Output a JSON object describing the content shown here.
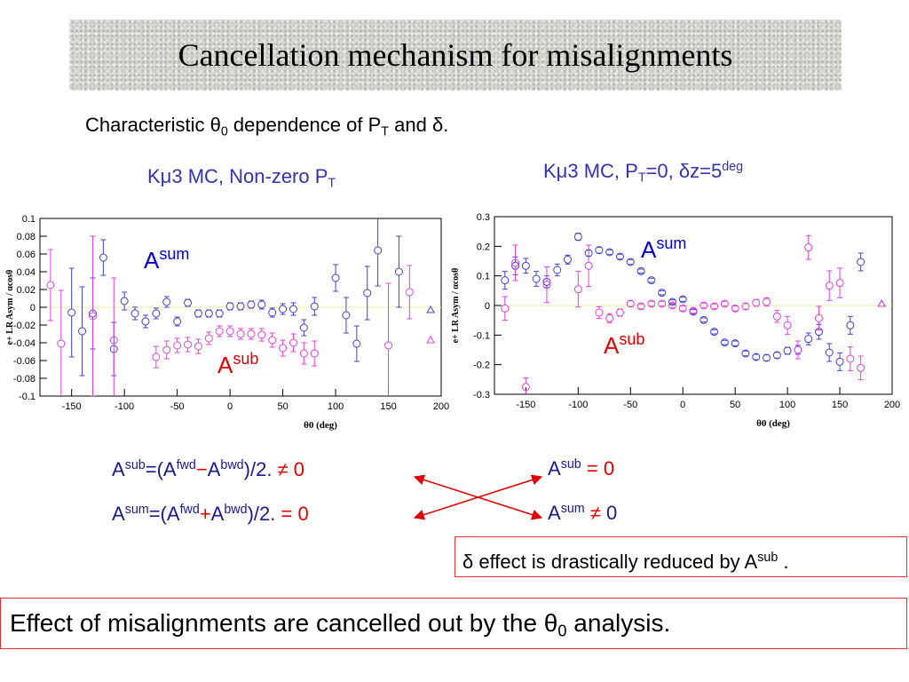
{
  "title": "Cancellation mechanism for misalignments",
  "subtitle": {
    "runs": [
      {
        "t": "Characteristic θ"
      },
      {
        "t": "0",
        "s": "sub"
      },
      {
        "t": " dependence of P"
      },
      {
        "t": "T",
        "s": "sub"
      },
      {
        "t": " and δ."
      }
    ]
  },
  "left_heading": {
    "runs": [
      {
        "t": "Kμ3 MC, Non-zero P"
      },
      {
        "t": "T",
        "s": "sub"
      }
    ]
  },
  "right_heading": {
    "runs": [
      {
        "t": "Kμ3 MC, P"
      },
      {
        "t": "T",
        "s": "sub"
      },
      {
        "t": "=0, δz=5"
      },
      {
        "t": "deg",
        "s": "sup"
      }
    ]
  },
  "formula_sub": {
    "runs": [
      {
        "t": "A"
      },
      {
        "t": "sub",
        "s": "sup"
      },
      {
        "t": "=(A"
      },
      {
        "t": "fwd",
        "s": "sup"
      },
      {
        "t": "−",
        "c": "#e00000"
      },
      {
        "t": "A"
      },
      {
        "t": "bwd",
        "s": "sup"
      },
      {
        "t": ")/2.  "
      },
      {
        "t": "≠ 0",
        "c": "#e00000"
      }
    ]
  },
  "formula_sum": {
    "runs": [
      {
        "t": "A"
      },
      {
        "t": "sum",
        "s": "sup"
      },
      {
        "t": "=(A"
      },
      {
        "t": "fwd",
        "s": "sup"
      },
      {
        "t": "+",
        "c": "#e00000"
      },
      {
        "t": "A"
      },
      {
        "t": "bwd",
        "s": "sup"
      },
      {
        "t": ")/2.   "
      },
      {
        "t": "=  0",
        "c": "#e00000"
      }
    ]
  },
  "result_sub": {
    "runs": [
      {
        "t": "A"
      },
      {
        "t": "sub",
        "s": "sup"
      },
      {
        "t": "  = 0",
        "c": "#e00000"
      }
    ]
  },
  "result_sum": {
    "runs": [
      {
        "t": "A"
      },
      {
        "t": "sum",
        "s": "sup"
      },
      {
        "t": " ≠",
        "c": "#e00000"
      },
      {
        "t": " 0"
      }
    ]
  },
  "note": {
    "runs": [
      {
        "t": "δ effect is drastically reduced by A"
      },
      {
        "t": "sub",
        "s": "sup"
      },
      {
        "t": " ."
      }
    ]
  },
  "conclusion": {
    "runs": [
      {
        "t": "Effect of misalignments are cancelled out by the θ"
      },
      {
        "t": "0",
        "s": "sub"
      },
      {
        "t": " analysis."
      }
    ]
  },
  "chart_data": [
    {
      "type": "scatter",
      "xlabel": "θ0 (deg)",
      "ylabel": "e+ LR Asym / αcosθ",
      "zero_line": "#f0f0a0",
      "x": [
        -170,
        -160,
        -150,
        -140,
        -130,
        -120,
        -110,
        -100,
        -90,
        -80,
        -70,
        -60,
        -50,
        -40,
        -30,
        -20,
        -10,
        0,
        10,
        20,
        30,
        40,
        50,
        60,
        70,
        80,
        90,
        100,
        110,
        120,
        130,
        140,
        150,
        160,
        170
      ],
      "xlim": [
        -180,
        200
      ],
      "ylim": [
        -0.1,
        0.1
      ],
      "xticks": [
        -150,
        -100,
        -50,
        0,
        50,
        100,
        150,
        200
      ],
      "yticks": [
        0.1,
        0.08,
        0.06,
        0.04,
        0.02,
        0,
        -0.02,
        -0.04,
        -0.06,
        -0.08,
        -0.1
      ],
      "series": [
        {
          "color": "#4040d0",
          "values": [
            null,
            null,
            -0.006,
            -0.027,
            -0.007,
            0.056,
            -0.047,
            0.007,
            -0.007,
            -0.016,
            -0.007,
            0.006,
            -0.016,
            0.005,
            -0.007,
            -0.007,
            -0.007,
            0.001,
            0.001,
            0.003,
            0.003,
            -0.006,
            -0.002,
            -0.002,
            -0.023,
            0.001,
            null,
            0.033,
            -0.009,
            -0.041,
            0.016,
            0.064,
            null,
            0.04,
            null
          ],
          "errors": [
            null,
            null,
            0.05,
            0.05,
            0.04,
            0.02,
            0.03,
            0.01,
            0.007,
            0.007,
            0.006,
            0.006,
            0.005,
            0.004,
            0.004,
            0.004,
            0.004,
            0.004,
            0.004,
            0.004,
            0.005,
            0.005,
            0.006,
            0.007,
            0.009,
            0.01,
            null,
            0.015,
            0.02,
            0.02,
            0.03,
            0.04,
            null,
            0.04,
            null
          ]
        },
        {
          "color": "#e040e0",
          "values": [
            0.025,
            -0.041,
            null,
            null,
            -0.01,
            null,
            -0.037,
            null,
            null,
            null,
            -0.056,
            -0.048,
            -0.043,
            -0.042,
            -0.044,
            -0.035,
            -0.027,
            -0.027,
            -0.03,
            -0.03,
            -0.031,
            -0.037,
            -0.046,
            -0.04,
            -0.052,
            -0.052,
            null,
            null,
            null,
            null,
            null,
            null,
            -0.043,
            null,
            0.017
          ],
          "errors": [
            0.04,
            0.06,
            null,
            null,
            0.09,
            null,
            0.07,
            null,
            null,
            null,
            0.012,
            0.01,
            0.008,
            0.008,
            0.008,
            0.007,
            0.006,
            0.006,
            0.006,
            0.006,
            0.007,
            0.008,
            0.009,
            0.01,
            0.012,
            0.014,
            null,
            null,
            null,
            null,
            null,
            null,
            0.07,
            null,
            0.03
          ]
        },
        {
          "color": "#4040d0",
          "marker": "triangle",
          "x": [
            190
          ],
          "values": [
            -0.003
          ]
        },
        {
          "color": "#e040e0",
          "marker": "triangle",
          "x": [
            190
          ],
          "values": [
            -0.037
          ]
        }
      ],
      "annotations": [
        {
          "text": "A",
          "sup": "sum",
          "color": "#0000cc"
        },
        {
          "text": "A",
          "sup": "sub",
          "color": "#e00000"
        }
      ]
    },
    {
      "type": "scatter",
      "xlabel": "θ0 (deg)",
      "ylabel": "e+ LR Asym / αcosθ",
      "zero_line": "#f0f0a0",
      "x": [
        -170,
        -160,
        -150,
        -140,
        -130,
        -120,
        -110,
        -100,
        -90,
        -80,
        -70,
        -60,
        -50,
        -40,
        -30,
        -20,
        -10,
        0,
        10,
        20,
        30,
        40,
        50,
        60,
        70,
        80,
        90,
        100,
        110,
        120,
        130,
        140,
        150,
        160,
        170
      ],
      "xlim": [
        -180,
        200
      ],
      "ylim": [
        -0.3,
        0.3
      ],
      "xticks": [
        -150,
        -100,
        -50,
        0,
        50,
        100,
        150,
        200
      ],
      "yticks": [
        0.3,
        0.2,
        0.1,
        0,
        -0.1,
        -0.2,
        -0.3
      ],
      "series": [
        {
          "color": "#4040d0",
          "values": [
            0.085,
            0.134,
            0.134,
            0.09,
            0.08,
            0.12,
            0.155,
            0.232,
            0.177,
            0.187,
            0.18,
            0.165,
            0.147,
            0.116,
            0.085,
            0.043,
            0.012,
            0.021,
            -0.021,
            -0.049,
            -0.089,
            -0.125,
            -0.128,
            -0.162,
            -0.174,
            -0.177,
            -0.168,
            -0.153,
            -0.15,
            -0.113,
            -0.089,
            -0.159,
            -0.19,
            -0.067,
            0.147
          ],
          "errors": [
            0.03,
            0.03,
            0.025,
            0.025,
            0.02,
            0.02,
            0.015,
            0.012,
            0.01,
            0.01,
            0.008,
            0.008,
            0.008,
            0.007,
            0.007,
            0.007,
            0.007,
            0.007,
            0.007,
            0.007,
            0.007,
            0.007,
            0.008,
            0.008,
            0.009,
            0.01,
            0.01,
            0.012,
            0.015,
            0.02,
            0.025,
            0.03,
            0.03,
            0.03,
            0.03
          ]
        },
        {
          "color": "#e040e0",
          "values": [
            -0.01,
            0.144,
            -0.275,
            null,
            0.07,
            null,
            null,
            0.055,
            0.134,
            -0.024,
            -0.043,
            -0.024,
            0.006,
            -0.003,
            0.006,
            0.006,
            0,
            -0.01,
            -0.018,
            0,
            -0.003,
            0.006,
            -0.01,
            -0.003,
            0.009,
            0.012,
            -0.037,
            -0.067,
            -0.15,
            0.196,
            -0.043,
            0.067,
            0.076,
            -0.18,
            -0.211
          ],
          "errors": [
            0.04,
            0.06,
            0.03,
            null,
            0.06,
            null,
            null,
            0.06,
            0.07,
            0.02,
            0.015,
            0.012,
            0.01,
            0.008,
            0.008,
            0.008,
            0.008,
            0.008,
            0.008,
            0.008,
            0.008,
            0.008,
            0.008,
            0.01,
            0.012,
            0.014,
            0.02,
            0.03,
            0.03,
            0.04,
            0.04,
            0.05,
            0.05,
            0.04,
            0.04
          ]
        },
        {
          "color": "#4040d0",
          "marker": "triangle",
          "x": [
            190
          ],
          "values": [
            0.006
          ]
        },
        {
          "color": "#e040e0",
          "marker": "triangle",
          "x": [
            190
          ],
          "values": [
            0.006
          ]
        }
      ],
      "annotations": [
        {
          "text": "A",
          "sup": "sum",
          "color": "#0000cc"
        },
        {
          "text": "A",
          "sup": "sub",
          "color": "#e00000"
        }
      ]
    }
  ]
}
